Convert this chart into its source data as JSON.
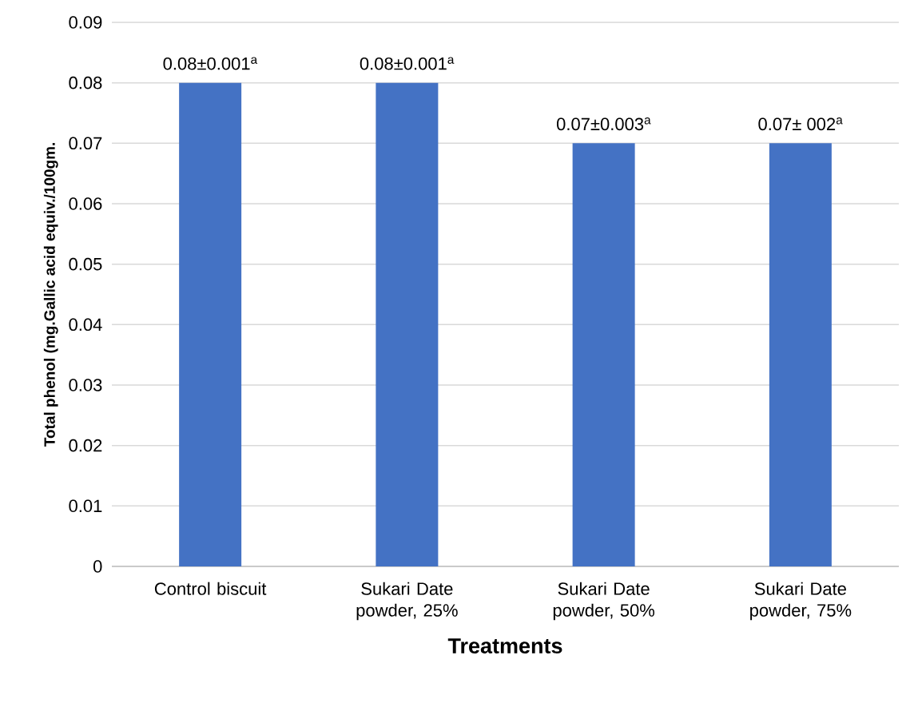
{
  "chart_data": {
    "type": "bar",
    "xlabel": "Treatments",
    "ylabel": "Total phenol (mg.Gallic acid equiv./100gm.",
    "categories": [
      "Control biscuit",
      "Sukari Date powder, 25%",
      "Sukari Date powder, 50%",
      "Sukari Date powder, 75%"
    ],
    "values": [
      0.08,
      0.08,
      0.07,
      0.07
    ],
    "value_labels": [
      "0.08±0.001$^{a}$",
      "0.08±0.001$^{a}$",
      "0.07±0.003$^{a}$",
      "0.07± 002$^{a}$"
    ],
    "color": "#4472c4",
    "ylim": [
      0,
      0.09
    ],
    "yticks": [
      0,
      0.01,
      0.02,
      0.03,
      0.04,
      0.05,
      0.06,
      0.07,
      0.08,
      0.09
    ],
    "grid": "y"
  }
}
